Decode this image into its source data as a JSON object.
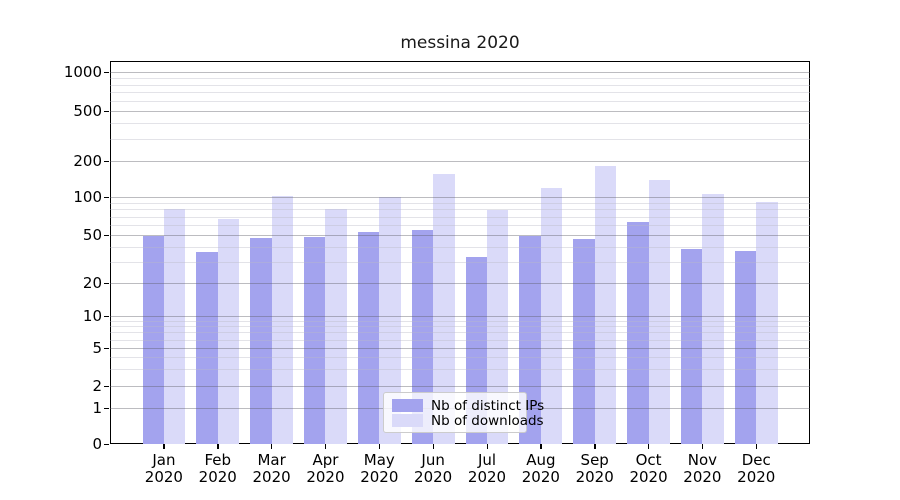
{
  "title": "messina 2020",
  "chart_data": {
    "type": "bar",
    "categories": [
      "Jan",
      "Feb",
      "Mar",
      "Apr",
      "May",
      "Jun",
      "Jul",
      "Aug",
      "Sep",
      "Oct",
      "Nov",
      "Dec"
    ],
    "category_year": "2020",
    "series": [
      {
        "name": "Nb of distinct IPs",
        "color": "#a3a3ee",
        "values": [
          49,
          36,
          47,
          48,
          53,
          55,
          33,
          49,
          46,
          63,
          38,
          37
        ]
      },
      {
        "name": "Nb of downloads",
        "color": "#dadaf9",
        "values": [
          80,
          67,
          102,
          80,
          100,
          155,
          79,
          118,
          180,
          140,
          105,
          92
        ]
      }
    ],
    "yscale": "symlog",
    "yticks": [
      0,
      1,
      2,
      5,
      10,
      20,
      50,
      100,
      200,
      500,
      1000
    ],
    "minor_yticks": [
      3,
      4,
      6,
      7,
      8,
      9,
      30,
      40,
      60,
      70,
      80,
      90,
      300,
      400,
      600,
      700,
      800,
      900
    ],
    "ylim": [
      0,
      1200
    ],
    "grid": "both",
    "legend_position": "lower center",
    "xlabel": "",
    "ylabel": ""
  },
  "colors": {
    "bar_distinct_ips": "#a3a3ee",
    "bar_downloads": "#dadaf9",
    "major_grid": "#b0b0b0",
    "minor_grid": "#e6e6e6",
    "spine": "#000000"
  }
}
